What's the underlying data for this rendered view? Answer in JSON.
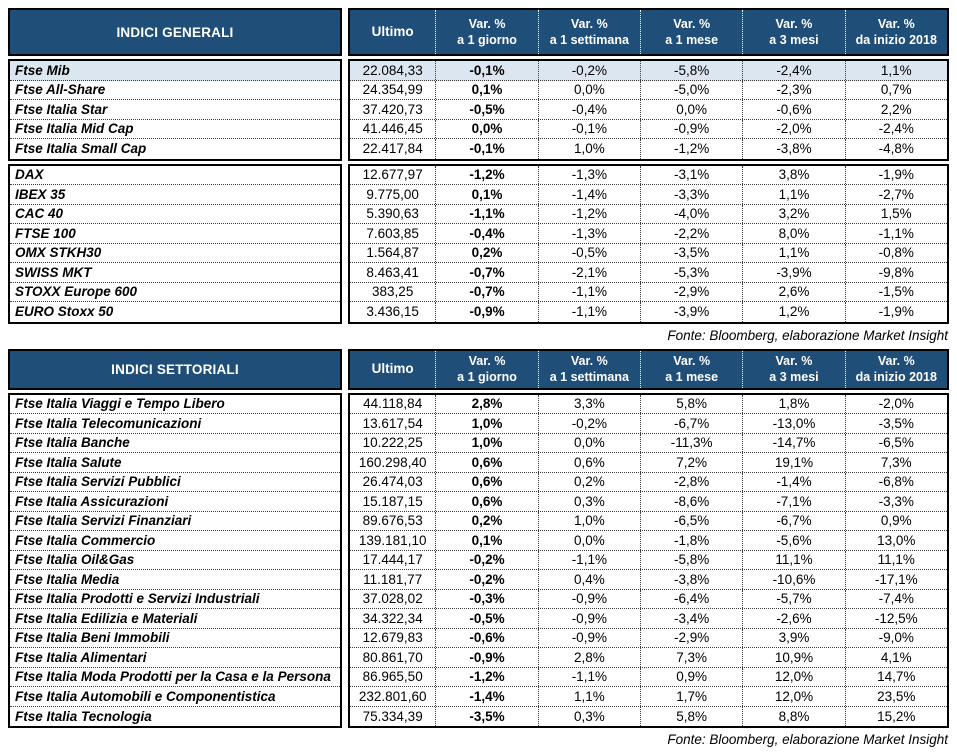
{
  "colors": {
    "header_bg": "#1F4E79",
    "highlight_row": "#DCE6F1",
    "grid_dotted": "#3a3a3a",
    "border": "#000000"
  },
  "columns": [
    {
      "key": "ultimo",
      "label": "Ultimo",
      "sublabel": ""
    },
    {
      "key": "var_1_giorno",
      "label": "Var. %",
      "sublabel": "a 1 giorno"
    },
    {
      "key": "var_1_settimana",
      "label": "Var. %",
      "sublabel": "a 1 settimana"
    },
    {
      "key": "var_1_mese",
      "label": "Var. %",
      "sublabel": "a 1 mese"
    },
    {
      "key": "var_3_mesi",
      "label": "Var. %",
      "sublabel": "a 3 mesi"
    },
    {
      "key": "var_da_inizio_2018",
      "label": "Var. %",
      "sublabel": "da inizio 2018"
    }
  ],
  "tables": [
    {
      "title": "INDICI GENERALI",
      "source": "Fonte: Bloomberg, elaborazione Market Insight",
      "groups": [
        {
          "rows": [
            {
              "name": "Ftse Mib",
              "highlight": true,
              "values": [
                "22.084,33",
                "-0,1%",
                "-0,2%",
                "-5,8%",
                "-2,4%",
                "1,1%"
              ]
            },
            {
              "name": "Ftse All-Share",
              "values": [
                "24.354,99",
                "0,1%",
                "0,0%",
                "-5,0%",
                "-2,3%",
                "0,7%"
              ]
            },
            {
              "name": "Ftse Italia Star",
              "values": [
                "37.420,73",
                "-0,5%",
                "-0,4%",
                "0,0%",
                "-0,6%",
                "2,2%"
              ]
            },
            {
              "name": "Ftse Italia Mid Cap",
              "values": [
                "41.446,45",
                "0,0%",
                "-0,1%",
                "-0,9%",
                "-2,0%",
                "-2,4%"
              ]
            },
            {
              "name": "Ftse Italia Small Cap",
              "values": [
                "22.417,84",
                "-0,1%",
                "1,0%",
                "-1,2%",
                "-3,8%",
                "-4,8%"
              ]
            }
          ]
        },
        {
          "rows": [
            {
              "name": "DAX",
              "values": [
                "12.677,97",
                "-1,2%",
                "-1,3%",
                "-3,1%",
                "3,8%",
                "-1,9%"
              ]
            },
            {
              "name": "IBEX 35",
              "values": [
                "9.775,00",
                "0,1%",
                "-1,4%",
                "-3,3%",
                "1,1%",
                "-2,7%"
              ]
            },
            {
              "name": "CAC 40",
              "values": [
                "5.390,63",
                "-1,1%",
                "-1,2%",
                "-4,0%",
                "3,2%",
                "1,5%"
              ]
            },
            {
              "name": "FTSE 100",
              "values": [
                "7.603,85",
                "-0,4%",
                "-1,3%",
                "-2,2%",
                "8,0%",
                "-1,1%"
              ]
            },
            {
              "name": "OMX STKH30",
              "values": [
                "1.564,87",
                "0,2%",
                "-0,5%",
                "-3,5%",
                "1,1%",
                "-0,8%"
              ]
            },
            {
              "name": "SWISS MKT",
              "values": [
                "8.463,41",
                "-0,7%",
                "-2,1%",
                "-5,3%",
                "-3,9%",
                "-9,8%"
              ]
            },
            {
              "name": "STOXX Europe 600",
              "values": [
                "383,25",
                "-0,7%",
                "-1,1%",
                "-2,9%",
                "2,6%",
                "-1,5%"
              ]
            },
            {
              "name": "EURO Stoxx 50",
              "values": [
                "3.436,15",
                "-0,9%",
                "-1,1%",
                "-3,9%",
                "1,2%",
                "-1,9%"
              ]
            }
          ]
        }
      ]
    },
    {
      "title": "INDICI SETTORIALI",
      "source": "Fonte: Bloomberg, elaborazione Market Insight",
      "groups": [
        {
          "rows": [
            {
              "name": "Ftse Italia Viaggi e Tempo Libero",
              "values": [
                "44.118,84",
                "2,8%",
                "3,3%",
                "5,8%",
                "1,8%",
                "-2,0%"
              ]
            },
            {
              "name": "Ftse Italia Telecomunicazioni",
              "values": [
                "13.617,54",
                "1,0%",
                "-0,2%",
                "-6,7%",
                "-13,0%",
                "-3,5%"
              ]
            },
            {
              "name": "Ftse Italia Banche",
              "values": [
                "10.222,25",
                "1,0%",
                "0,0%",
                "-11,3%",
                "-14,7%",
                "-6,5%"
              ]
            },
            {
              "name": "Ftse Italia Salute",
              "values": [
                "160.298,40",
                "0,6%",
                "0,6%",
                "7,2%",
                "19,1%",
                "7,3%"
              ]
            },
            {
              "name": "Ftse Italia Servizi Pubblici",
              "values": [
                "26.474,03",
                "0,6%",
                "0,2%",
                "-2,8%",
                "-1,4%",
                "-6,8%"
              ]
            },
            {
              "name": "Ftse Italia Assicurazioni",
              "values": [
                "15.187,15",
                "0,6%",
                "0,3%",
                "-8,6%",
                "-7,1%",
                "-3,3%"
              ]
            },
            {
              "name": "Ftse Italia Servizi Finanziari",
              "values": [
                "89.676,53",
                "0,2%",
                "1,0%",
                "-6,5%",
                "-6,7%",
                "0,9%"
              ]
            },
            {
              "name": "Ftse Italia Commercio",
              "values": [
                "139.181,10",
                "0,1%",
                "0,0%",
                "-1,8%",
                "-5,6%",
                "13,0%"
              ]
            },
            {
              "name": "Ftse Italia Oil&Gas",
              "values": [
                "17.444,17",
                "-0,2%",
                "-1,1%",
                "-5,8%",
                "11,1%",
                "11,1%"
              ]
            },
            {
              "name": "Ftse Italia Media",
              "values": [
                "11.181,77",
                "-0,2%",
                "0,4%",
                "-3,8%",
                "-10,6%",
                "-17,1%"
              ]
            },
            {
              "name": "Ftse Italia Prodotti e Servizi Industriali",
              "values": [
                "37.028,02",
                "-0,3%",
                "-0,9%",
                "-6,4%",
                "-5,7%",
                "-7,4%"
              ]
            },
            {
              "name": "Ftse Italia Edilizia e Materiali",
              "values": [
                "34.322,34",
                "-0,5%",
                "-0,9%",
                "-3,4%",
                "-2,6%",
                "-12,5%"
              ]
            },
            {
              "name": "Ftse Italia Beni Immobili",
              "values": [
                "12.679,83",
                "-0,6%",
                "-0,9%",
                "-2,9%",
                "3,9%",
                "-9,0%"
              ]
            },
            {
              "name": "Ftse Italia Alimentari",
              "values": [
                "80.861,70",
                "-0,9%",
                "2,8%",
                "7,3%",
                "10,9%",
                "4,1%"
              ]
            },
            {
              "name": "Ftse Italia Moda Prodotti per la Casa e la Persona",
              "values": [
                "86.965,50",
                "-1,2%",
                "-1,1%",
                "0,9%",
                "12,0%",
                "14,7%"
              ]
            },
            {
              "name": "Ftse Italia Automobili e Componentistica",
              "values": [
                "232.801,60",
                "-1,4%",
                "1,1%",
                "1,7%",
                "12,0%",
                "23,5%"
              ]
            },
            {
              "name": "Ftse Italia Tecnologia",
              "values": [
                "75.334,39",
                "-3,5%",
                "0,3%",
                "5,8%",
                "8,8%",
                "15,2%"
              ]
            }
          ]
        }
      ]
    }
  ]
}
